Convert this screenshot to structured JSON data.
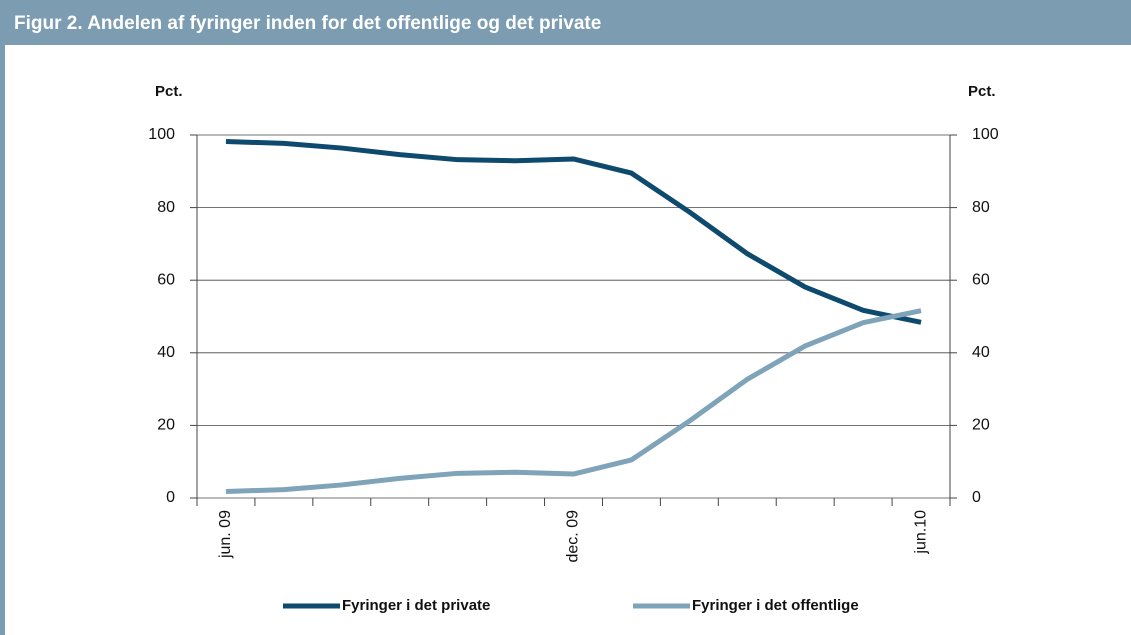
{
  "chart_data": {
    "type": "line",
    "title": "Figur 2. Andelen af fyringer inden for det offentlige og det private",
    "ylabel": "Pct.",
    "y2label": "Pct.",
    "categories": [
      "jun. 09",
      null,
      null,
      null,
      null,
      null,
      "dec. 09",
      null,
      null,
      null,
      null,
      null,
      "jun.10"
    ],
    "series": [
      {
        "name": "Fyringer i det private",
        "color": "#0e4a6e",
        "values": [
          98.2,
          97.7,
          96.4,
          94.6,
          93.2,
          92.9,
          93.4,
          89.5,
          78.8,
          67.3,
          58.1,
          51.7,
          48.4
        ]
      },
      {
        "name": "Fyringer i det offentlige",
        "color": "#7fa3b8",
        "values": [
          1.8,
          2.3,
          3.6,
          5.4,
          6.8,
          7.1,
          6.6,
          10.5,
          21.2,
          32.7,
          41.9,
          48.3,
          51.6
        ]
      }
    ],
    "ylim": [
      0,
      100
    ],
    "yticks": [
      0,
      20,
      40,
      60,
      80,
      100
    ],
    "y2lim": [
      0,
      100
    ],
    "y2ticks": [
      0,
      20,
      40,
      60,
      80,
      100
    ],
    "grid": true,
    "legend": "bottom"
  }
}
